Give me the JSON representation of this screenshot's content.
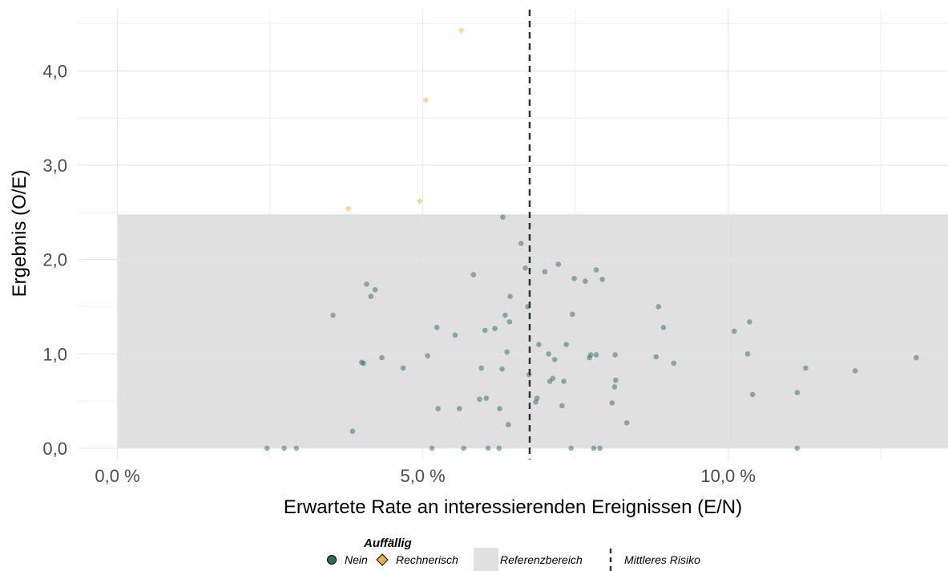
{
  "chart_data": {
    "type": "scatter",
    "xlabel": "Erwartete Rate an interessierenden Ereignissen (E/N)",
    "ylabel": "Ergebnis (O/E)",
    "xlim": [
      -0.0065,
      0.136
    ],
    "ylim": [
      -0.12,
      4.65
    ],
    "x_ticks": [
      0,
      0.05,
      0.1
    ],
    "x_tick_labels": [
      "0,0 %",
      "5,0 %",
      "10,0 %"
    ],
    "y_ticks": [
      0,
      1,
      2,
      3,
      4
    ],
    "y_tick_labels": [
      "0,0",
      "1,0",
      "2,0",
      "3,0",
      "4,0"
    ],
    "grid": true,
    "reference_range": {
      "x": [
        0,
        0.136
      ],
      "y": [
        0,
        2.48
      ]
    },
    "mean_risk": 0.0675,
    "legend": {
      "title": "Auffällig",
      "placement": "bottom",
      "items": {
        "nein": "Nein",
        "rechnerisch": "Rechnerisch",
        "referenz": "Referenzbereich",
        "mittleres": "Mittleres Risiko"
      }
    },
    "colors": {
      "nein": "#2f6b61",
      "rechnerisch": "#f0b040",
      "referenz": "#e0e0e0",
      "mean_line": "#333333",
      "grid_major": "#e6e6e6",
      "grid_minor": "#f0f0f0"
    },
    "series": [
      {
        "name": "Rechnerisch",
        "points": [
          [
            0.0563,
            4.43
          ],
          [
            0.0505,
            3.69
          ],
          [
            0.0378,
            2.54
          ],
          [
            0.0495,
            2.62
          ]
        ]
      },
      {
        "name": "Nein",
        "points": [
          [
            0.0245,
            0.0
          ],
          [
            0.0273,
            0.0
          ],
          [
            0.0293,
            0.0
          ],
          [
            0.0353,
            1.41
          ],
          [
            0.0385,
            0.18
          ],
          [
            0.04,
            0.91
          ],
          [
            0.0403,
            0.9
          ],
          [
            0.0408,
            1.74
          ],
          [
            0.0415,
            1.61
          ],
          [
            0.0422,
            1.68
          ],
          [
            0.0433,
            0.96
          ],
          [
            0.0468,
            0.85
          ],
          [
            0.0508,
            0.98
          ],
          [
            0.0515,
            0.0
          ],
          [
            0.0523,
            1.28
          ],
          [
            0.0525,
            0.42
          ],
          [
            0.0553,
            1.2
          ],
          [
            0.056,
            0.42
          ],
          [
            0.0567,
            0.0
          ],
          [
            0.0583,
            1.84
          ],
          [
            0.0593,
            0.52
          ],
          [
            0.0596,
            0.85
          ],
          [
            0.0602,
            1.25
          ],
          [
            0.0604,
            0.53
          ],
          [
            0.0607,
            0.0
          ],
          [
            0.0618,
            1.27
          ],
          [
            0.0625,
            0.0
          ],
          [
            0.0626,
            0.42
          ],
          [
            0.063,
            0.84
          ],
          [
            0.0631,
            2.45
          ],
          [
            0.0635,
            1.41
          ],
          [
            0.0638,
            1.02
          ],
          [
            0.064,
            0.25
          ],
          [
            0.0642,
            1.34
          ],
          [
            0.0643,
            1.61
          ],
          [
            0.0661,
            2.17
          ],
          [
            0.0668,
            1.91
          ],
          [
            0.0672,
            1.5
          ],
          [
            0.0674,
            0.78
          ],
          [
            0.0685,
            0.49
          ],
          [
            0.0687,
            0.53
          ],
          [
            0.069,
            1.1
          ],
          [
            0.07,
            1.87
          ],
          [
            0.0706,
            1.0
          ],
          [
            0.0708,
            0.71
          ],
          [
            0.0713,
            0.74
          ],
          [
            0.0716,
            0.94
          ],
          [
            0.0722,
            1.95
          ],
          [
            0.0728,
            0.45
          ],
          [
            0.0731,
            0.71
          ],
          [
            0.0735,
            1.1
          ],
          [
            0.0743,
            0.0
          ],
          [
            0.0745,
            1.42
          ],
          [
            0.0748,
            1.8
          ],
          [
            0.0766,
            1.77
          ],
          [
            0.0773,
            0.96
          ],
          [
            0.0775,
            0.99
          ],
          [
            0.078,
            0.0
          ],
          [
            0.0784,
            1.89
          ],
          [
            0.0784,
            0.99
          ],
          [
            0.079,
            0.0
          ],
          [
            0.0794,
            1.79
          ],
          [
            0.081,
            0.48
          ],
          [
            0.0814,
            0.65
          ],
          [
            0.0815,
            0.99
          ],
          [
            0.0816,
            0.72
          ],
          [
            0.0834,
            0.27
          ],
          [
            0.0882,
            0.97
          ],
          [
            0.0886,
            1.5
          ],
          [
            0.0894,
            1.28
          ],
          [
            0.0911,
            0.9
          ],
          [
            0.101,
            1.24
          ],
          [
            0.1032,
            1.0
          ],
          [
            0.1035,
            1.34
          ],
          [
            0.104,
            0.57
          ],
          [
            0.1113,
            0.59
          ],
          [
            0.1113,
            0.0
          ],
          [
            0.1127,
            0.85
          ],
          [
            0.1208,
            0.82
          ],
          [
            0.1308,
            0.96
          ]
        ]
      }
    ]
  }
}
